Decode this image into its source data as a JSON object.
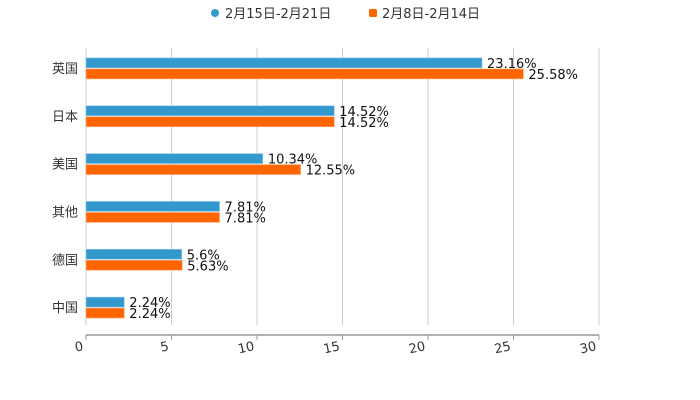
{
  "chart_data": {
    "type": "bar",
    "orientation": "horizontal",
    "title": "",
    "xlabel": "",
    "ylabel": "",
    "xlim": [
      0,
      30
    ],
    "xticks": [
      "0",
      "5",
      "10",
      "15",
      "20",
      "25",
      "30"
    ],
    "grid": true,
    "legend_position": "top-center",
    "categories": [
      "英国",
      "日本",
      "美国",
      "其他",
      "德国",
      "中国"
    ],
    "series": [
      {
        "name": "2月15日-2月21日",
        "color": "#3399cc",
        "values": [
          23.16,
          14.52,
          10.34,
          7.81,
          5.6,
          2.24
        ],
        "labels": [
          "23.16%",
          "14.52%",
          "10.34%",
          "7.81%",
          "5.6%",
          "2.24%"
        ]
      },
      {
        "name": "2月8日-2月14日",
        "color": "#ff6600",
        "values": [
          25.58,
          14.52,
          12.55,
          7.81,
          5.63,
          2.24
        ],
        "labels": [
          "25.58%",
          "14.52%",
          "12.55%",
          "7.81%",
          "5.63%",
          "2.24%"
        ]
      }
    ]
  }
}
